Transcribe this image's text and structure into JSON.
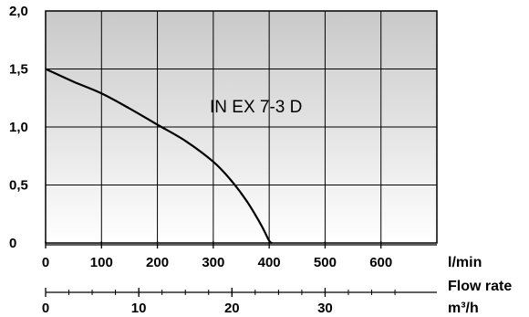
{
  "chart_data": {
    "type": "line",
    "series": [
      {
        "name": "IN EX 7-3 D",
        "x_lmin": [
          0,
          50,
          100,
          150,
          200,
          250,
          300,
          330,
          360,
          385,
          400,
          405
        ],
        "y": [
          1.5,
          1.39,
          1.29,
          1.16,
          1.02,
          0.88,
          0.7,
          0.55,
          0.36,
          0.16,
          0.02,
          0
        ]
      }
    ],
    "y_axis": {
      "range": [
        0,
        2.0
      ],
      "ticks": [
        "0",
        "0,5",
        "1,0",
        "1,5",
        "2,0"
      ],
      "tick_values": [
        0,
        0.5,
        1.0,
        1.5,
        2.0
      ]
    },
    "x_axis_lmin": {
      "range": [
        0,
        700
      ],
      "ticks": [
        "0",
        "100",
        "200",
        "300",
        "400",
        "500",
        "600"
      ],
      "tick_values": [
        0,
        100,
        200,
        300,
        400,
        500,
        600
      ],
      "label": "l/min"
    },
    "x_axis_m3h": {
      "range": [
        0,
        37.5
      ],
      "ticks": [
        "0",
        "10",
        "20",
        "30"
      ],
      "tick_values": [
        0,
        10,
        20,
        30
      ],
      "minor_step": 2.5,
      "label": "m³/h"
    },
    "axis_title": "Flow rate",
    "grid": true,
    "background": "vertical gradient grey to white"
  }
}
